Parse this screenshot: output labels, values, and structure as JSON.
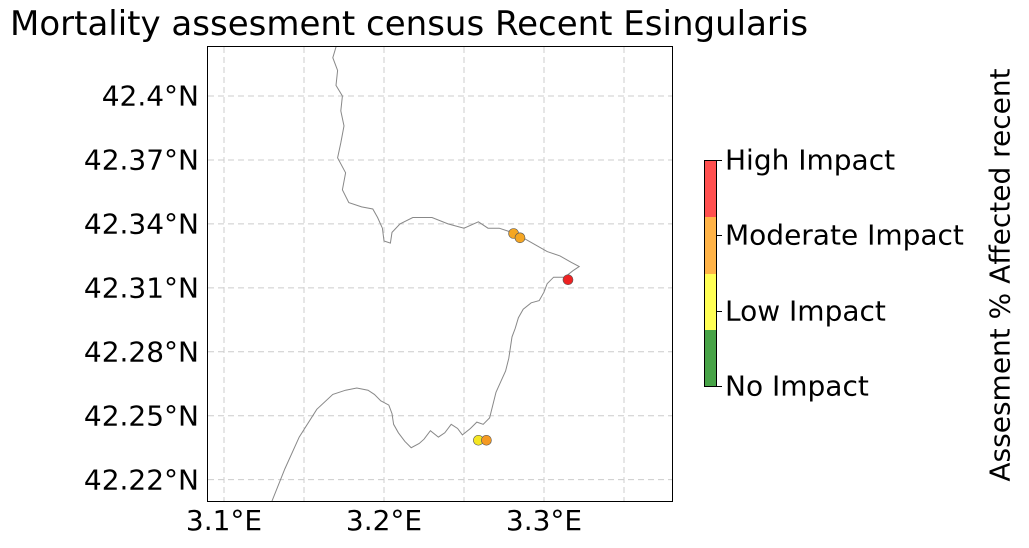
{
  "chart_data": {
    "type": "scatter",
    "title": "Mortality assesment census Recent Esingularis",
    "xlim": [
      3.09,
      3.38
    ],
    "ylim": [
      42.21,
      42.423
    ],
    "x_ticks": [
      3.1,
      3.2,
      3.3
    ],
    "x_tick_labels": [
      "3.1°E",
      "3.2°E",
      "3.3°E"
    ],
    "y_ticks": [
      42.4,
      42.37,
      42.34,
      42.31,
      42.28,
      42.25,
      42.22
    ],
    "y_tick_labels": [
      "42.4°N",
      "42.37°N",
      "42.34°N",
      "42.31°N",
      "42.28°N",
      "42.25°N",
      "42.22°N"
    ],
    "grid": true,
    "colorbar": {
      "label": "Assesment % Affected recent",
      "categories": [
        "No Impact",
        "Low Impact",
        "Moderate Impact",
        "High Impact"
      ],
      "colors": [
        "#47a347",
        "#ffff55",
        "#ffb347",
        "#ff5050"
      ]
    },
    "points": [
      {
        "lon": 3.281,
        "lat": 42.3355,
        "category": "Moderate Impact",
        "color": "#f5a623"
      },
      {
        "lon": 3.285,
        "lat": 42.3335,
        "category": "Moderate Impact",
        "color": "#f5a623"
      },
      {
        "lon": 3.315,
        "lat": 42.3138,
        "category": "High Impact",
        "color": "#ee2222"
      },
      {
        "lon": 3.259,
        "lat": 42.2385,
        "category": "Low Impact",
        "color": "#f5e623"
      },
      {
        "lon": 3.264,
        "lat": 42.2385,
        "category": "Moderate Impact",
        "color": "#f59a23"
      }
    ],
    "coastline": [
      [
        3.17,
        42.423
      ],
      [
        3.168,
        42.418
      ],
      [
        3.171,
        42.412
      ],
      [
        3.17,
        42.405
      ],
      [
        3.174,
        42.4
      ],
      [
        3.173,
        42.393
      ],
      [
        3.175,
        42.386
      ],
      [
        3.173,
        42.378
      ],
      [
        3.171,
        42.371
      ],
      [
        3.176,
        42.364
      ],
      [
        3.174,
        42.356
      ],
      [
        3.178,
        42.35
      ],
      [
        3.186,
        42.348
      ],
      [
        3.193,
        42.347
      ],
      [
        3.196,
        42.343
      ],
      [
        3.199,
        42.338
      ],
      [
        3.2,
        42.332
      ],
      [
        3.204,
        42.331
      ],
      [
        3.205,
        42.336
      ],
      [
        3.21,
        42.34
      ],
      [
        3.218,
        42.343
      ],
      [
        3.23,
        42.343
      ],
      [
        3.24,
        42.34
      ],
      [
        3.25,
        42.338
      ],
      [
        3.259,
        42.341
      ],
      [
        3.265,
        42.338
      ],
      [
        3.272,
        42.338
      ],
      [
        3.28,
        42.336
      ],
      [
        3.288,
        42.333
      ],
      [
        3.295,
        42.33
      ],
      [
        3.302,
        42.327
      ],
      [
        3.31,
        42.325
      ],
      [
        3.317,
        42.322
      ],
      [
        3.322,
        42.32
      ],
      [
        3.318,
        42.318
      ],
      [
        3.313,
        42.315
      ],
      [
        3.306,
        42.315
      ],
      [
        3.302,
        42.312
      ],
      [
        3.3,
        42.308
      ],
      [
        3.297,
        42.304
      ],
      [
        3.292,
        42.303
      ],
      [
        3.287,
        42.3
      ],
      [
        3.284,
        42.296
      ],
      [
        3.282,
        42.291
      ],
      [
        3.28,
        42.287
      ],
      [
        3.279,
        42.282
      ],
      [
        3.278,
        42.277
      ],
      [
        3.276,
        42.271
      ],
      [
        3.273,
        42.266
      ],
      [
        3.27,
        42.261
      ],
      [
        3.268,
        42.255
      ],
      [
        3.266,
        42.249
      ],
      [
        3.262,
        42.246
      ],
      [
        3.258,
        42.247
      ],
      [
        3.254,
        42.244
      ],
      [
        3.249,
        42.241
      ],
      [
        3.246,
        42.244
      ],
      [
        3.242,
        42.246
      ],
      [
        3.238,
        42.242
      ],
      [
        3.234,
        42.24
      ],
      [
        3.229,
        42.243
      ],
      [
        3.225,
        42.239
      ],
      [
        3.222,
        42.237
      ],
      [
        3.217,
        42.235
      ],
      [
        3.213,
        42.238
      ],
      [
        3.209,
        42.242
      ],
      [
        3.206,
        42.246
      ],
      [
        3.205,
        42.251
      ],
      [
        3.203,
        42.255
      ],
      [
        3.198,
        42.257
      ],
      [
        3.194,
        42.26
      ],
      [
        3.19,
        42.262
      ],
      [
        3.183,
        42.263
      ],
      [
        3.176,
        42.262
      ],
      [
        3.168,
        42.26
      ],
      [
        3.158,
        42.253
      ],
      [
        3.147,
        42.24
      ],
      [
        3.138,
        42.225
      ],
      [
        3.13,
        42.21
      ]
    ]
  }
}
